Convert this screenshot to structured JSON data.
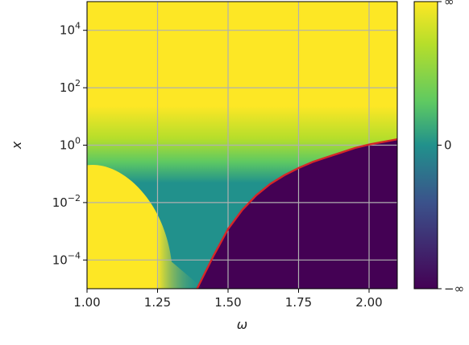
{
  "chart_data": {
    "type": "heatmap",
    "title": "",
    "xlabel": "ω",
    "ylabel": "x",
    "xlim": [
      1.0,
      2.1
    ],
    "ylim_log10": [
      -5,
      5
    ],
    "y_scale": "log",
    "grid": true,
    "x_ticks": [
      1.0,
      1.25,
      1.5,
      1.75,
      2.0
    ],
    "x_tick_labels": [
      "1.00",
      "1.25",
      "1.50",
      "1.75",
      "2.00"
    ],
    "y_ticks_exponent": [
      -4,
      -2,
      0,
      2,
      4
    ],
    "y_tick_labels": [
      {
        "base": "10",
        "exp": "−4"
      },
      {
        "base": "10",
        "exp": "−2"
      },
      {
        "base": "10",
        "exp": "0"
      },
      {
        "base": "10",
        "exp": "2"
      },
      {
        "base": "10",
        "exp": "4"
      }
    ],
    "colorbar": {
      "colormap": "viridis",
      "tick_labels": [
        "∞",
        "0",
        "−∞"
      ],
      "colors": {
        "top": "#fde725",
        "upper": "#5ec962",
        "middle": "#21918c",
        "lower": "#3b528b",
        "bottom": "#440154"
      }
    },
    "regions": {
      "upper_band_log10_min": 1.7,
      "teal_band_log10_min": -0.7,
      "yellow_left_omega_max": 1.3
    },
    "curve": {
      "color": "#d62728",
      "points": [
        {
          "x": 1.39,
          "y": 1e-05
        },
        {
          "x": 1.45,
          "y": 0.00015
        },
        {
          "x": 1.5,
          "y": 0.0012
        },
        {
          "x": 1.55,
          "y": 0.0055
        },
        {
          "x": 1.6,
          "y": 0.018
        },
        {
          "x": 1.65,
          "y": 0.045
        },
        {
          "x": 1.7,
          "y": 0.09
        },
        {
          "x": 1.75,
          "y": 0.16
        },
        {
          "x": 1.8,
          "y": 0.26
        },
        {
          "x": 1.85,
          "y": 0.38
        },
        {
          "x": 1.9,
          "y": 0.55
        },
        {
          "x": 1.95,
          "y": 0.8
        },
        {
          "x": 2.0,
          "y": 1.05
        },
        {
          "x": 2.05,
          "y": 1.3
        },
        {
          "x": 2.1,
          "y": 1.6
        }
      ]
    }
  }
}
